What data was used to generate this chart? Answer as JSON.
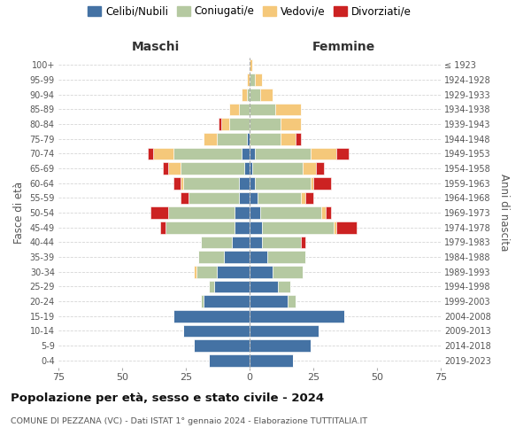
{
  "age_groups": [
    "0-4",
    "5-9",
    "10-14",
    "15-19",
    "20-24",
    "25-29",
    "30-34",
    "35-39",
    "40-44",
    "45-49",
    "50-54",
    "55-59",
    "60-64",
    "65-69",
    "70-74",
    "75-79",
    "80-84",
    "85-89",
    "90-94",
    "95-99",
    "100+"
  ],
  "birth_years": [
    "2019-2023",
    "2014-2018",
    "2009-2013",
    "2004-2008",
    "1999-2003",
    "1994-1998",
    "1989-1993",
    "1984-1988",
    "1979-1983",
    "1974-1978",
    "1969-1973",
    "1964-1968",
    "1959-1963",
    "1954-1958",
    "1949-1953",
    "1944-1948",
    "1939-1943",
    "1934-1938",
    "1929-1933",
    "1924-1928",
    "≤ 1923"
  ],
  "colors": {
    "celibi": "#4472a4",
    "coniugati": "#b5c9a1",
    "vedovi": "#f5c87a",
    "divorziati": "#cc2222"
  },
  "maschi": {
    "celibi": [
      16,
      22,
      26,
      30,
      18,
      14,
      13,
      10,
      7,
      6,
      6,
      4,
      4,
      2,
      3,
      1,
      0,
      0,
      0,
      0,
      0
    ],
    "coniugati": [
      0,
      0,
      0,
      0,
      1,
      2,
      8,
      10,
      12,
      27,
      26,
      20,
      22,
      25,
      27,
      12,
      8,
      4,
      1,
      0,
      0
    ],
    "vedovi": [
      0,
      0,
      0,
      0,
      0,
      0,
      1,
      0,
      0,
      0,
      0,
      0,
      1,
      5,
      8,
      5,
      3,
      4,
      2,
      1,
      0
    ],
    "divorziati": [
      0,
      0,
      0,
      0,
      0,
      0,
      0,
      0,
      0,
      2,
      7,
      3,
      3,
      2,
      2,
      0,
      1,
      0,
      0,
      0,
      0
    ]
  },
  "femmine": {
    "celibi": [
      17,
      24,
      27,
      37,
      15,
      11,
      9,
      7,
      5,
      5,
      4,
      3,
      2,
      1,
      2,
      0,
      0,
      0,
      0,
      0,
      0
    ],
    "coniugati": [
      0,
      0,
      0,
      0,
      3,
      5,
      12,
      15,
      15,
      28,
      24,
      17,
      22,
      20,
      22,
      12,
      12,
      10,
      4,
      2,
      0
    ],
    "vedovi": [
      0,
      0,
      0,
      0,
      0,
      0,
      0,
      0,
      0,
      1,
      2,
      2,
      1,
      5,
      10,
      6,
      8,
      10,
      5,
      3,
      1
    ],
    "divorziati": [
      0,
      0,
      0,
      0,
      0,
      0,
      0,
      0,
      2,
      8,
      2,
      3,
      7,
      3,
      5,
      2,
      0,
      0,
      0,
      0,
      0
    ]
  },
  "xlim": 75,
  "title": "Popolazione per età, sesso e stato civile - 2024",
  "subtitle": "COMUNE DI PEZZANA (VC) - Dati ISTAT 1° gennaio 2024 - Elaborazione TUTTITALIA.IT",
  "ylabel_left": "Fasce di età",
  "ylabel_right": "Anni di nascita",
  "xlabel_maschi": "Maschi",
  "xlabel_femmine": "Femmine",
  "legend_labels": [
    "Celibi/Nubili",
    "Coniugati/e",
    "Vedovi/e",
    "Divorziati/e"
  ]
}
